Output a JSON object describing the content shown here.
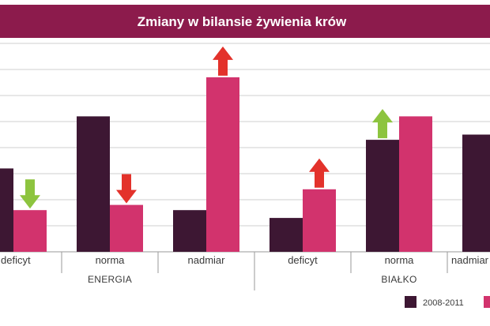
{
  "theme": {
    "title_bar": "#8c1b4c",
    "grid": "#cfcfcf",
    "axis": "#9a9a9a"
  },
  "chart_data": {
    "type": "bar",
    "title": "Zmiany w bilansie żywienia krów",
    "categories": [
      "deficyt",
      "norma",
      "nadmiar",
      "deficyt",
      "norma",
      "nadmiar"
    ],
    "groups": [
      {
        "label": "ENERGIA",
        "categories": [
          0,
          1,
          2
        ]
      },
      {
        "label": "BIAŁKO",
        "categories": [
          3,
          4,
          5
        ]
      }
    ],
    "series": [
      {
        "name": "2008-2011",
        "color": "#3d1733",
        "values": [
          3.2,
          5.2,
          1.6,
          1.3,
          4.3,
          4.5
        ]
      },
      {
        "color": "#d2336d",
        "values": [
          1.6,
          1.8,
          6.7,
          2.4,
          5.2,
          null
        ]
      }
    ],
    "ylim": [
      0,
      8
    ],
    "grid": true,
    "legend": {
      "position": "bottom-right"
    },
    "arrows": [
      {
        "category": 0,
        "series": 1,
        "direction": "down",
        "color": "#8dc43f"
      },
      {
        "category": 1,
        "series": 1,
        "direction": "down",
        "color": "#e3322b"
      },
      {
        "category": 2,
        "series": 1,
        "direction": "up",
        "color": "#e3322b"
      },
      {
        "category": 3,
        "series": 1,
        "direction": "up",
        "color": "#e3322b"
      },
      {
        "category": 4,
        "series": 0,
        "direction": "up",
        "color": "#8dc43f"
      }
    ]
  }
}
